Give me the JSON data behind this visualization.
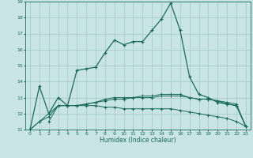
{
  "xlabel": "Humidex (Indice chaleur)",
  "xlim": [
    -0.5,
    23.5
  ],
  "ylim": [
    11,
    19
  ],
  "yticks": [
    11,
    12,
    13,
    14,
    15,
    16,
    17,
    18,
    19
  ],
  "xticks": [
    0,
    1,
    2,
    3,
    4,
    5,
    6,
    7,
    8,
    9,
    10,
    11,
    12,
    13,
    14,
    15,
    16,
    17,
    18,
    19,
    20,
    21,
    22,
    23
  ],
  "bg_color": "#c8e4e4",
  "grid_color": "#a0c8c8",
  "line_color": "#1a6b5a",
  "line1_x": [
    0,
    1,
    2,
    3,
    4,
    5,
    6,
    7,
    8,
    9,
    10,
    11,
    12,
    13,
    14,
    15,
    16,
    17,
    18,
    19,
    20,
    21,
    22,
    23
  ],
  "line1_y": [
    11.0,
    13.7,
    12.0,
    13.0,
    12.5,
    14.7,
    14.8,
    14.9,
    15.8,
    16.6,
    16.3,
    16.5,
    16.5,
    17.2,
    17.9,
    18.9,
    17.2,
    14.3,
    13.2,
    13.0,
    12.7,
    12.6,
    12.5,
    11.2
  ],
  "line2_x": [
    0,
    1,
    2,
    3,
    4,
    5,
    6,
    7,
    8,
    9,
    10,
    11,
    12,
    13,
    14,
    15,
    16,
    17,
    18,
    19,
    20,
    21,
    22,
    23
  ],
  "line2_y": [
    11.0,
    11.5,
    11.8,
    12.5,
    12.5,
    12.5,
    12.5,
    12.5,
    12.4,
    12.4,
    12.3,
    12.3,
    12.3,
    12.3,
    12.3,
    12.3,
    12.2,
    12.1,
    12.0,
    11.9,
    11.8,
    11.7,
    11.5,
    11.2
  ],
  "line3_x": [
    0,
    1,
    2,
    3,
    4,
    5,
    6,
    7,
    8,
    9,
    10,
    11,
    12,
    13,
    14,
    15,
    16,
    17,
    18,
    19,
    20,
    21,
    22,
    23
  ],
  "line3_y": [
    11.0,
    11.5,
    12.0,
    12.5,
    12.5,
    12.5,
    12.6,
    12.7,
    12.8,
    12.9,
    12.9,
    13.0,
    13.0,
    13.0,
    13.1,
    13.1,
    13.1,
    13.0,
    12.9,
    12.9,
    12.8,
    12.7,
    12.6,
    11.2
  ],
  "line4_x": [
    2,
    3,
    4,
    5,
    6,
    7,
    8,
    9,
    10,
    11,
    12,
    13,
    14,
    15,
    16,
    17,
    18,
    19,
    20,
    21,
    22,
    23
  ],
  "line4_y": [
    11.5,
    12.5,
    12.5,
    12.5,
    12.6,
    12.7,
    12.9,
    13.0,
    13.0,
    13.0,
    13.1,
    13.1,
    13.2,
    13.2,
    13.2,
    13.0,
    12.9,
    12.9,
    12.8,
    12.6,
    12.5,
    11.2
  ]
}
